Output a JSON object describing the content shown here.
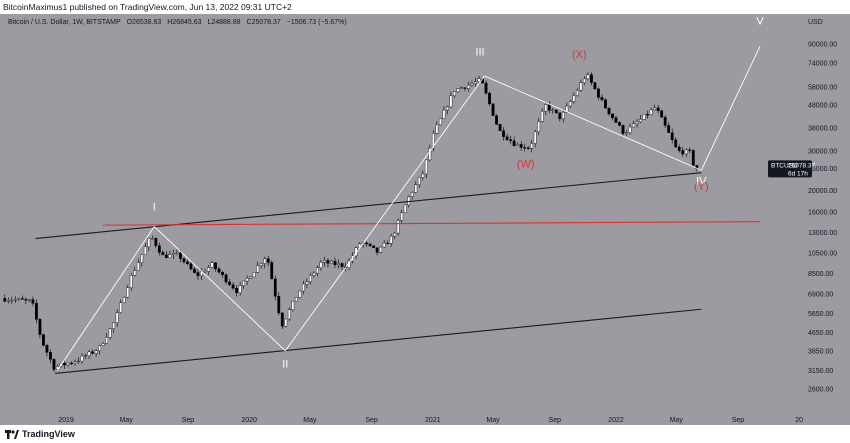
{
  "header": {
    "attribution": "BitcoinMaximus1 published on TradingView.com, Jun 13, 2022 09:31 UTC+2"
  },
  "symbol_info": {
    "name": "Bitcoin / U.S. Dollar, 1W, BITSTAMP",
    "open": "O26538.63",
    "high": "H26845.63",
    "low": "L24888.88",
    "close": "C25078.37",
    "change": "−1506.73 (−5.67%)"
  },
  "footer": {
    "brand": "TradingView"
  },
  "colors": {
    "background": "#9b9ba1",
    "candle_up": "#ffffff",
    "candle_down": "#000000",
    "trendline": "#1c1c1c",
    "wave_line": "#ffffff",
    "resistance": "#e03030",
    "wave_label_white": "#ffffff",
    "wave_label_red": "#e03030"
  },
  "chart_data": {
    "type": "candlestick",
    "symbol": "BTCUSD",
    "timeframe": "1W",
    "scale": "log",
    "currency_label": "USD",
    "y_ticks": [
      90000,
      74000,
      58000,
      48000,
      38000,
      30000,
      25000,
      20000,
      16000,
      13000,
      10500,
      8500,
      6900,
      5650,
      4650,
      3850,
      3150,
      2600
    ],
    "y_tick_labels": [
      "90000.00",
      "74000.00",
      "58000.00",
      "48000.00",
      "38000.00",
      "30000.00",
      "25000.00",
      "20000.00",
      "16000.00",
      "13000.00",
      "10500.00",
      "8500.00",
      "6900.00",
      "5650.00",
      "4650.00",
      "3850.00",
      "3150.00",
      "2600.00"
    ],
    "x_ticks": [
      "2019",
      "May",
      "Sep",
      "2020",
      "May",
      "Sep",
      "2021",
      "May",
      "Sep",
      "2022",
      "May",
      "Sep",
      "20"
    ],
    "x_tick_dates": [
      "2019-01-01",
      "2019-05-01",
      "2019-09-01",
      "2020-01-01",
      "2020-05-01",
      "2020-09-01",
      "2021-01-01",
      "2021-05-01",
      "2021-09-01",
      "2022-01-01",
      "2022-05-01",
      "2022-09-01",
      "2023-01-01"
    ],
    "price_label": {
      "symbol": "BTCUSD",
      "value": "25078.37",
      "countdown": "6d 17h",
      "price": 25078.37
    },
    "ohlc_keypoints": [
      [
        "2018-09-01",
        6600
      ],
      [
        "2018-11-01",
        6400
      ],
      [
        "2018-11-20",
        4300
      ],
      [
        "2018-12-15",
        3250
      ],
      [
        "2019-02-01",
        3500
      ],
      [
        "2019-03-15",
        3950
      ],
      [
        "2019-04-15",
        5200
      ],
      [
        "2019-05-15",
        8000
      ],
      [
        "2019-06-26",
        12500
      ],
      [
        "2019-07-20",
        10200
      ],
      [
        "2019-08-20",
        10300
      ],
      [
        "2019-09-25",
        8300
      ],
      [
        "2019-10-26",
        9300
      ],
      [
        "2019-12-15",
        7100
      ],
      [
        "2020-02-12",
        10300
      ],
      [
        "2020-03-13",
        5000
      ],
      [
        "2020-04-15",
        7000
      ],
      [
        "2020-06-01",
        9600
      ],
      [
        "2020-07-20",
        9200
      ],
      [
        "2020-08-17",
        11800
      ],
      [
        "2020-09-20",
        10600
      ],
      [
        "2020-10-20",
        12500
      ],
      [
        "2020-11-20",
        18500
      ],
      [
        "2020-12-20",
        24000
      ],
      [
        "2021-01-10",
        36000
      ],
      [
        "2021-02-20",
        56000
      ],
      [
        "2021-04-14",
        62000
      ],
      [
        "2021-05-20",
        37000
      ],
      [
        "2021-06-22",
        32000
      ],
      [
        "2021-07-20",
        31000
      ],
      [
        "2021-08-20",
        48000
      ],
      [
        "2021-09-20",
        42000
      ],
      [
        "2021-11-10",
        66000
      ],
      [
        "2021-12-15",
        48000
      ],
      [
        "2022-01-24",
        36000
      ],
      [
        "2022-03-28",
        47000
      ],
      [
        "2022-05-10",
        30000
      ],
      [
        "2022-06-06",
        29500
      ],
      [
        "2022-06-13",
        25078
      ]
    ],
    "trendlines": [
      {
        "name": "upper-channel",
        "color": "#1c1c1c",
        "from": [
          "2018-11-01",
          12200
        ],
        "to": [
          "2022-06-20",
          24000
        ]
      },
      {
        "name": "lower-channel",
        "color": "#1c1c1c",
        "from": [
          "2018-12-10",
          3050
        ],
        "to": [
          "2022-06-20",
          5900
        ]
      },
      {
        "name": "horizontal-resistance",
        "color": "#e03030",
        "from": [
          "2019-03-15",
          14000
        ],
        "to": [
          "2022-10-15",
          14500
        ]
      },
      {
        "name": "wave-I-up",
        "color": "#ffffff",
        "from": [
          "2018-12-15",
          3150
        ],
        "to": [
          "2019-06-26",
          13800
        ]
      },
      {
        "name": "wave-II-down",
        "color": "#ffffff",
        "from": [
          "2019-06-26",
          13800
        ],
        "to": [
          "2020-03-13",
          3850
        ]
      },
      {
        "name": "wave-III-up",
        "color": "#ffffff",
        "from": [
          "2020-03-13",
          3850
        ],
        "to": [
          "2021-04-14",
          64800
        ]
      },
      {
        "name": "wave-IV-down",
        "color": "#ffffff",
        "from": [
          "2021-04-14",
          64800
        ],
        "to": [
          "2022-06-20",
          24600
        ]
      },
      {
        "name": "wave-V-projection",
        "color": "#ffffff",
        "from": [
          "2022-06-20",
          24600
        ],
        "to": [
          "2022-10-15",
          88000
        ]
      }
    ],
    "wave_labels": [
      {
        "text": "I",
        "date": "2019-06-26",
        "price": 16300,
        "color": "#ffffff"
      },
      {
        "text": "II",
        "date": "2020-03-13",
        "price": 3250,
        "color": "#ffffff"
      },
      {
        "text": "III",
        "date": "2021-04-05",
        "price": 80000,
        "color": "#ffffff"
      },
      {
        "text": "V",
        "date": "2022-10-15",
        "price": 110000,
        "color": "#ffffff"
      },
      {
        "text": "IV",
        "date": "2022-06-20",
        "price": 21200,
        "color": "#ffffff"
      },
      {
        "text": "(Y)",
        "date": "2022-06-20",
        "price": 20100,
        "color": "#e03030"
      },
      {
        "text": "(X)",
        "date": "2021-10-20",
        "price": 78000,
        "color": "#e03030"
      },
      {
        "text": "(W)",
        "date": "2021-07-05",
        "price": 25300,
        "color": "#e03030"
      }
    ]
  }
}
